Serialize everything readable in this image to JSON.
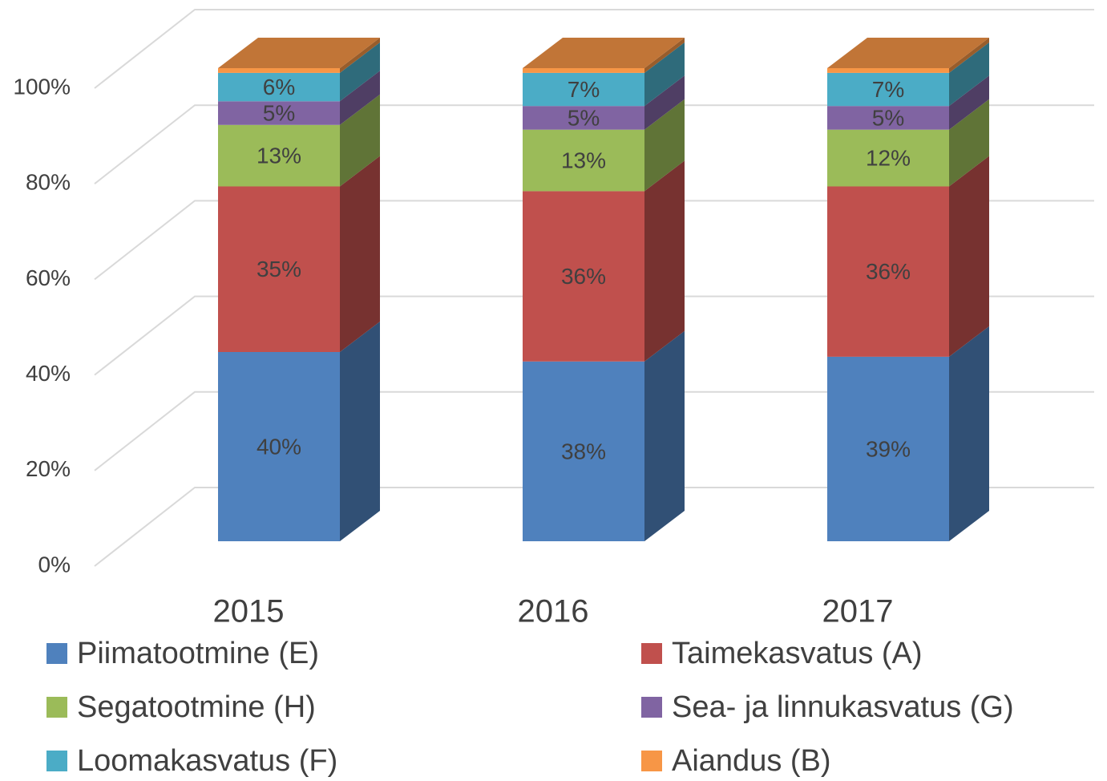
{
  "chart_data": {
    "type": "bar3d_stacked",
    "categories": [
      "2015",
      "2016",
      "2017"
    ],
    "series": [
      {
        "name": "Piimatootmine (E)",
        "color": "#4f81bd",
        "values": [
          40,
          38,
          39
        ],
        "value_labels": [
          "40%",
          "38%",
          "39%"
        ]
      },
      {
        "name": "Taimekasvatus (A)",
        "color": "#c0504d",
        "values": [
          35,
          36,
          36
        ],
        "value_labels": [
          "35%",
          "36%",
          "36%"
        ]
      },
      {
        "name": "Segatootmine (H)",
        "color": "#9bbb59",
        "values": [
          13,
          13,
          12
        ],
        "value_labels": [
          "13%",
          "13%",
          "12%"
        ]
      },
      {
        "name": "Sea- ja linnukasvatus (G)",
        "color": "#8064a2",
        "values": [
          5,
          5,
          5
        ],
        "value_labels": [
          "5%",
          "5%",
          "5%"
        ]
      },
      {
        "name": "Loomakasvatus (F)",
        "color": "#4bacc6",
        "values": [
          6,
          7,
          7
        ],
        "value_labels": [
          "6%",
          "7%",
          "7%"
        ]
      },
      {
        "name": "Aiandus (B)",
        "color": "#f79646",
        "values": [
          1,
          1,
          1
        ]
      }
    ],
    "ylim": [
      0,
      100
    ],
    "yticks": [
      {
        "value": 0,
        "label": "0%"
      },
      {
        "value": 20,
        "label": "20%"
      },
      {
        "value": 40,
        "label": "40%"
      },
      {
        "value": 60,
        "label": "60%"
      },
      {
        "value": 80,
        "label": "80%"
      },
      {
        "value": 100,
        "label": "100%"
      }
    ],
    "grid": true,
    "legend": "bottom"
  }
}
